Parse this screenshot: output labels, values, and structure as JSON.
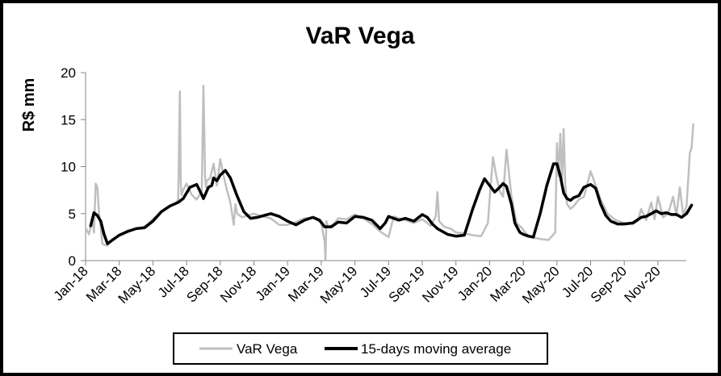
{
  "chart_data": {
    "type": "line",
    "title": "VaR Vega",
    "xlabel": "",
    "ylabel": "R$ mm",
    "ylim": [
      0,
      20
    ],
    "yticks": [
      "0",
      "5",
      "10",
      "15",
      "20"
    ],
    "ytick_values": [
      0,
      5,
      10,
      15,
      20
    ],
    "xticks": [
      "Jan-18",
      "Mar-18",
      "May-18",
      "Jul-18",
      "Sep-18",
      "Nov-18",
      "Jan-19",
      "Mar-19",
      "May-19",
      "Jul-19",
      "Sep-19",
      "Nov-19",
      "Jan-20",
      "Mar-20",
      "May-20",
      "Jul-20",
      "Sep-20",
      "Nov-20"
    ],
    "x_unit": "months since Jan-18",
    "xlim": [
      0,
      36.5
    ],
    "grid": false,
    "legend": "bottom",
    "series": [
      {
        "name": "VaR Vega",
        "color": "#bfbfbf",
        "x": [
          0.0,
          0.2,
          0.4,
          0.5,
          0.6,
          0.7,
          0.8,
          0.9,
          1.0,
          1.1,
          1.3,
          1.6,
          2.0,
          2.5,
          3.0,
          3.5,
          4.0,
          4.5,
          5.0,
          5.3,
          5.5,
          5.6,
          5.65,
          5.7,
          5.8,
          6.0,
          6.3,
          6.6,
          6.9,
          7.0,
          7.1,
          7.15,
          7.2,
          7.4,
          7.6,
          7.8,
          8.0,
          8.2,
          8.4,
          8.6,
          8.8,
          8.9,
          9.0,
          9.3,
          9.6,
          10.0,
          10.5,
          11.0,
          11.5,
          12.0,
          12.5,
          13.0,
          13.5,
          14.0,
          14.2,
          14.25,
          14.3,
          14.4,
          14.7,
          15.0,
          15.5,
          16.0,
          16.5,
          17.0,
          17.5,
          18.0,
          18.3,
          18.6,
          19.0,
          19.5,
          20.0,
          20.5,
          20.8,
          20.9,
          21.0,
          21.3,
          21.7,
          22.0,
          22.5,
          23.0,
          23.5,
          23.9,
          24.0,
          24.2,
          24.4,
          24.6,
          24.8,
          25.0,
          25.3,
          25.6,
          25.9,
          26.2,
          26.5,
          27.0,
          27.5,
          27.9,
          28.0,
          28.1,
          28.2,
          28.3,
          28.4,
          28.5,
          28.6,
          28.8,
          29.0,
          29.3,
          29.6,
          30.0,
          30.3,
          30.6,
          31.0,
          31.5,
          32.0,
          32.5,
          32.8,
          33.0,
          33.3,
          33.6,
          33.8,
          34.0,
          34.3,
          34.6,
          34.9,
          35.1,
          35.3,
          35.5,
          35.7,
          35.9,
          36.0,
          36.1
        ],
        "y": [
          3.5,
          2.8,
          4.5,
          3.0,
          8.2,
          7.8,
          5.0,
          3.5,
          1.8,
          1.7,
          1.6,
          2.3,
          2.7,
          3.2,
          3.4,
          3.6,
          4.4,
          5.2,
          5.8,
          6.0,
          6.5,
          18.0,
          8.5,
          7.0,
          7.5,
          8.2,
          7.0,
          6.5,
          7.4,
          18.6,
          9.0,
          7.8,
          8.5,
          8.8,
          10.3,
          8.0,
          10.8,
          9.0,
          7.5,
          6.2,
          3.8,
          6.0,
          5.0,
          4.6,
          4.8,
          5.0,
          4.7,
          4.5,
          3.8,
          3.8,
          4.1,
          4.5,
          4.6,
          4.0,
          2.0,
          0.0,
          4.2,
          3.6,
          3.8,
          4.5,
          4.4,
          4.9,
          4.5,
          3.9,
          3.1,
          2.5,
          4.7,
          4.5,
          4.3,
          4.0,
          4.4,
          3.7,
          4.7,
          7.3,
          4.2,
          3.6,
          3.4,
          3.0,
          2.9,
          2.7,
          2.6,
          4.0,
          6.5,
          11.0,
          9.0,
          7.4,
          6.8,
          11.8,
          6.8,
          4.0,
          3.5,
          2.8,
          2.5,
          2.3,
          2.2,
          3.0,
          12.5,
          9.0,
          13.5,
          8.5,
          14.0,
          8.0,
          6.0,
          5.5,
          5.8,
          6.5,
          6.8,
          9.5,
          8.0,
          6.5,
          5.0,
          4.3,
          4.0,
          3.9,
          4.2,
          5.5,
          4.3,
          6.2,
          4.4,
          6.8,
          4.6,
          5.0,
          6.8,
          4.8,
          7.8,
          4.8,
          5.8,
          11.5,
          12.0,
          14.5
        ]
      },
      {
        "name": "15-days moving average",
        "color": "#000000",
        "x": [
          0.3,
          0.5,
          0.7,
          0.9,
          1.1,
          1.3,
          1.6,
          2.0,
          2.5,
          3.0,
          3.5,
          4.0,
          4.5,
          5.0,
          5.5,
          5.8,
          6.2,
          6.6,
          6.9,
          7.0,
          7.3,
          7.5,
          7.6,
          7.8,
          8.0,
          8.3,
          8.6,
          9.0,
          9.4,
          9.8,
          10.2,
          10.6,
          11.0,
          11.5,
          12.0,
          12.5,
          13.0,
          13.5,
          13.9,
          14.2,
          14.6,
          15.0,
          15.5,
          16.0,
          16.5,
          17.0,
          17.5,
          17.8,
          18.0,
          18.3,
          18.6,
          19.0,
          19.5,
          20.0,
          20.3,
          20.6,
          20.9,
          21.2,
          21.5,
          22.0,
          22.5,
          23.0,
          23.4,
          23.7,
          24.0,
          24.3,
          24.6,
          24.8,
          25.0,
          25.3,
          25.5,
          25.8,
          26.0,
          26.3,
          26.6,
          27.0,
          27.4,
          27.8,
          28.0,
          28.2,
          28.4,
          28.6,
          28.8,
          29.0,
          29.3,
          29.6,
          30.0,
          30.3,
          30.6,
          30.9,
          31.2,
          31.6,
          32.0,
          32.5,
          33.0,
          33.3,
          33.6,
          33.9,
          34.2,
          34.5,
          34.8,
          35.1,
          35.4,
          35.7,
          36.0
        ],
        "y": [
          3.7,
          5.1,
          4.8,
          4.2,
          2.8,
          1.8,
          2.2,
          2.7,
          3.1,
          3.4,
          3.5,
          4.2,
          5.2,
          5.8,
          6.2,
          6.6,
          7.8,
          8.1,
          7.0,
          6.6,
          7.8,
          8.0,
          8.8,
          8.5,
          9.1,
          9.6,
          8.8,
          6.9,
          5.2,
          4.5,
          4.6,
          4.8,
          5.0,
          4.7,
          4.2,
          3.8,
          4.3,
          4.6,
          4.3,
          3.6,
          3.6,
          4.1,
          4.0,
          4.7,
          4.6,
          4.3,
          3.4,
          4.0,
          4.7,
          4.5,
          4.3,
          4.5,
          4.2,
          4.9,
          4.6,
          3.9,
          3.4,
          3.1,
          2.8,
          2.6,
          2.7,
          5.5,
          7.5,
          8.7,
          8.0,
          7.3,
          7.8,
          8.2,
          7.9,
          6.0,
          4.0,
          3.0,
          2.8,
          2.6,
          2.5,
          5.0,
          8.0,
          10.3,
          10.3,
          9.0,
          7.2,
          6.6,
          6.4,
          6.7,
          6.9,
          7.8,
          8.1,
          7.7,
          6.0,
          4.8,
          4.2,
          3.9,
          3.9,
          4.0,
          4.6,
          4.7,
          5.0,
          5.3,
          5.0,
          5.1,
          4.9,
          4.9,
          4.6,
          5.0,
          5.9
        ]
      }
    ]
  }
}
